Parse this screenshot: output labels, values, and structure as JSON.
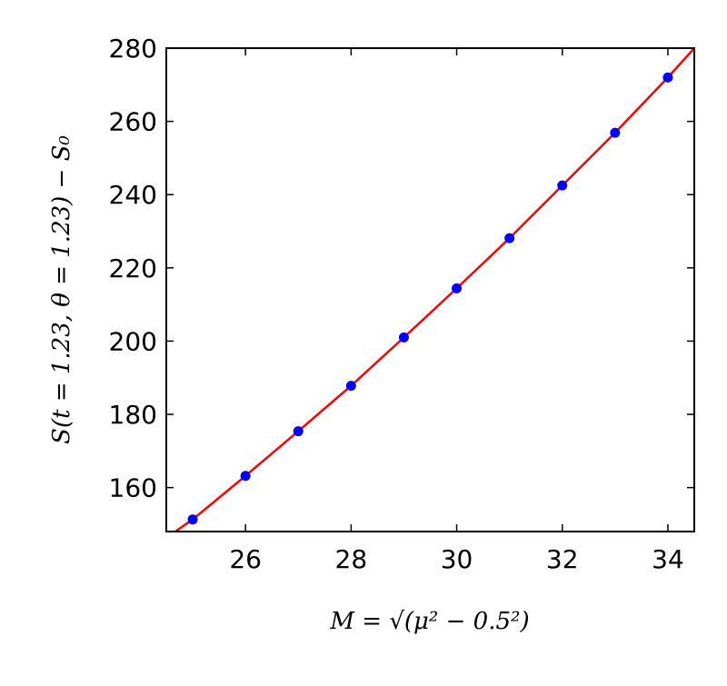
{
  "chart_data": {
    "type": "scatter",
    "x": [
      25,
      26,
      27,
      28,
      29,
      30,
      31,
      32,
      33,
      34
    ],
    "values": [
      151.3,
      163.2,
      175.4,
      187.8,
      201.0,
      214.4,
      228.1,
      242.5,
      256.9,
      272.0
    ],
    "color": "#0000ff",
    "fit": {
      "x": [
        24.67,
        25,
        26,
        27,
        28,
        29,
        30,
        31,
        32,
        33,
        34,
        34.5
      ],
      "values": [
        148,
        151.3,
        163.2,
        175.4,
        187.8,
        201.0,
        214.4,
        228.1,
        242.5,
        256.9,
        272.0,
        280
      ],
      "color": "#ff0000"
    },
    "xlabel": "M = √(μ² − 0.5²)",
    "ylabel": "S(t = 1.23, θ = 1.23) − S₀",
    "xlim": [
      24.5,
      34.5
    ],
    "xticks": [
      26,
      28,
      30,
      32,
      34
    ],
    "ylim": [
      148,
      280
    ],
    "yticks": [
      160,
      180,
      200,
      220,
      240,
      260,
      280
    ]
  }
}
